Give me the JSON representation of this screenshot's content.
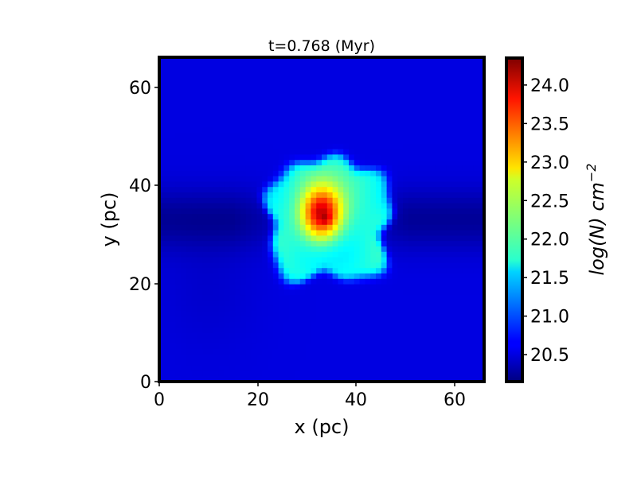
{
  "chart_data": {
    "type": "heatmap",
    "title": "t=0.768 (Myr)",
    "xlabel": "x (pc)",
    "ylabel": "y (pc)",
    "xlim": [
      0,
      66
    ],
    "ylim": [
      0,
      66
    ],
    "x_ticks": [
      "0",
      "20",
      "40",
      "60"
    ],
    "y_ticks": [
      "0",
      "20",
      "40",
      "60"
    ],
    "colormap": "jet",
    "colorbar": {
      "label": "log(N) cm",
      "label_exponent": "−2",
      "range": [
        20.15,
        24.35
      ],
      "ticks": [
        "20.5",
        "21.0",
        "21.5",
        "22.0",
        "22.5",
        "23.0",
        "23.5",
        "24.0"
      ]
    },
    "field": {
      "background_level": 20.55,
      "dark_band_y": 33,
      "dark_band_level": 20.25,
      "cloud_center": [
        34.5,
        33
      ],
      "cloud_level": 21.85,
      "core_center": [
        33,
        34
      ],
      "core_peak": 24.0
    }
  }
}
